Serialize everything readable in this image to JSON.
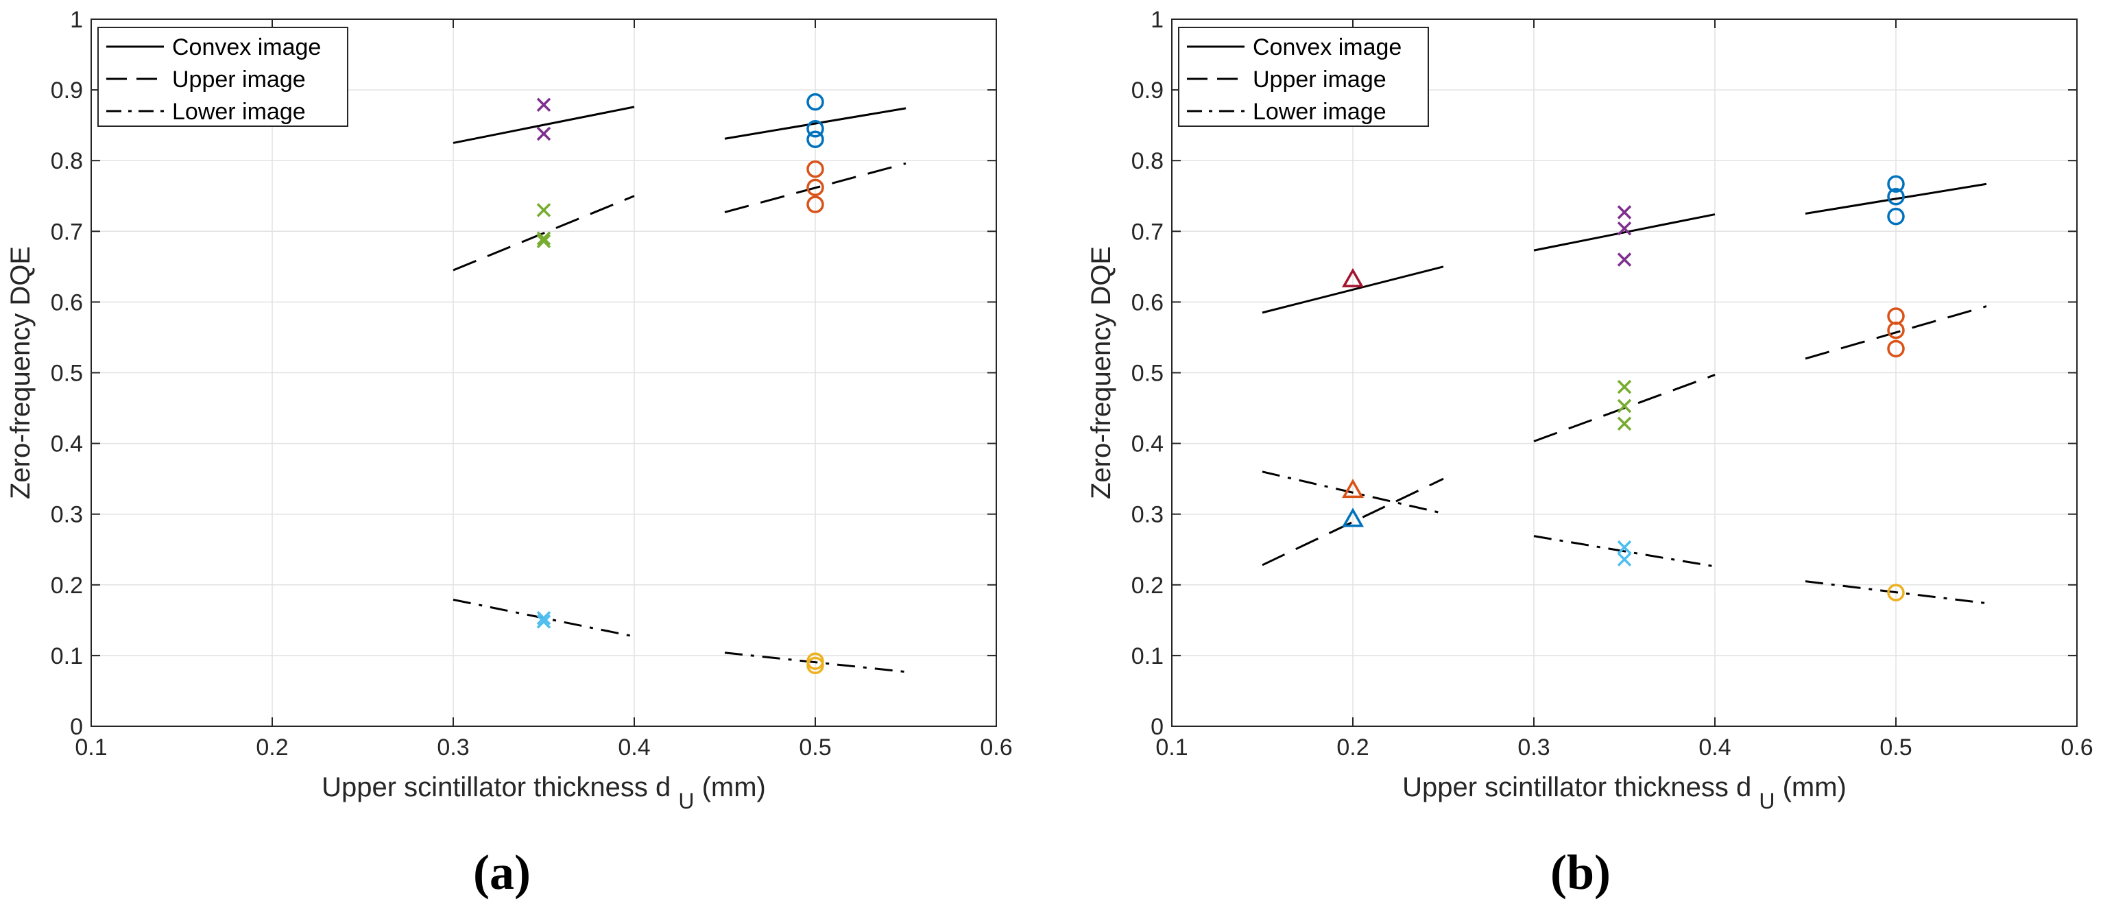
{
  "chart_data": [
    {
      "type": "line",
      "panel_label": "(a)",
      "xlabel": "Upper scintillator thickness d",
      "xlabel_subscript": "U",
      "xlabel_suffix": "(mm)",
      "ylabel": "Zero-frequency DQE",
      "xlim": [
        0.1,
        0.6
      ],
      "ylim": [
        0,
        1
      ],
      "xticks": [
        0.1,
        0.2,
        0.3,
        0.4,
        0.5,
        0.6
      ],
      "xtick_labels": [
        "0.1",
        "0.2",
        "0.3",
        "0.4",
        "0.5",
        "0.6"
      ],
      "yticks": [
        0,
        0.1,
        0.2,
        0.3,
        0.4,
        0.5,
        0.6,
        0.7,
        0.8,
        0.9,
        1
      ],
      "ytick_labels": [
        "0",
        "0.1",
        "0.2",
        "0.3",
        "0.4",
        "0.5",
        "0.6",
        "0.7",
        "0.8",
        "0.9",
        "1"
      ],
      "grid": true,
      "legend_position": "top-left",
      "legend": [
        {
          "label": "Convex image",
          "style": "solid"
        },
        {
          "label": "Upper image",
          "style": "dashed"
        },
        {
          "label": "Lower image",
          "style": "dashdot"
        }
      ],
      "series": [
        {
          "name": "Convex image",
          "style": "solid",
          "x": [
            0.3,
            0.4
          ],
          "y": [
            0.825,
            0.876
          ]
        },
        {
          "name": "Convex image",
          "style": "solid",
          "x": [
            0.45,
            0.55
          ],
          "y": [
            0.831,
            0.874
          ]
        },
        {
          "name": "Upper image",
          "style": "dashed",
          "x": [
            0.3,
            0.4
          ],
          "y": [
            0.645,
            0.75
          ]
        },
        {
          "name": "Upper image",
          "style": "dashed",
          "x": [
            0.45,
            0.55
          ],
          "y": [
            0.727,
            0.796
          ]
        },
        {
          "name": "Lower image",
          "style": "dashdot",
          "x": [
            0.3,
            0.4
          ],
          "y": [
            0.179,
            0.127
          ]
        },
        {
          "name": "Lower image",
          "style": "dashdot",
          "x": [
            0.45,
            0.55
          ],
          "y": [
            0.104,
            0.077
          ]
        }
      ],
      "markers": [
        {
          "shape": "x",
          "color": "#7E2F8E",
          "x": 0.35,
          "y": [
            0.879,
            0.838
          ]
        },
        {
          "shape": "x",
          "color": "#77AC30",
          "x": 0.35,
          "y": [
            0.73,
            0.69,
            0.686
          ]
        },
        {
          "shape": "x",
          "color": "#4DBEEE",
          "x": 0.35,
          "y": [
            0.153,
            0.148
          ]
        },
        {
          "shape": "o",
          "color": "#0072BD",
          "x": 0.5,
          "y": [
            0.883,
            0.845,
            0.83
          ]
        },
        {
          "shape": "o",
          "color": "#D95319",
          "x": 0.5,
          "y": [
            0.788,
            0.762,
            0.738
          ]
        },
        {
          "shape": "o",
          "color": "#EDB120",
          "x": 0.5,
          "y": [
            0.092,
            0.086
          ]
        }
      ]
    },
    {
      "type": "line",
      "panel_label": "(b)",
      "xlabel": "Upper scintillator thickness d",
      "xlabel_subscript": "U",
      "xlabel_suffix": "(mm)",
      "ylabel": "Zero-frequency DQE",
      "xlim": [
        0.1,
        0.6
      ],
      "ylim": [
        0,
        1
      ],
      "xticks": [
        0.1,
        0.2,
        0.3,
        0.4,
        0.5,
        0.6
      ],
      "xtick_labels": [
        "0.1",
        "0.2",
        "0.3",
        "0.4",
        "0.5",
        "0.6"
      ],
      "yticks": [
        0,
        0.1,
        0.2,
        0.3,
        0.4,
        0.5,
        0.6,
        0.7,
        0.8,
        0.9,
        1
      ],
      "ytick_labels": [
        "0",
        "0.1",
        "0.2",
        "0.3",
        "0.4",
        "0.5",
        "0.6",
        "0.7",
        "0.8",
        "0.9",
        "1"
      ],
      "grid": true,
      "legend_position": "top-left",
      "legend": [
        {
          "label": "Convex image",
          "style": "solid"
        },
        {
          "label": "Upper image",
          "style": "dashed"
        },
        {
          "label": "Lower image",
          "style": "dashdot"
        }
      ],
      "series": [
        {
          "name": "Convex image",
          "style": "solid",
          "x": [
            0.15,
            0.25
          ],
          "y": [
            0.585,
            0.65
          ]
        },
        {
          "name": "Convex image",
          "style": "solid",
          "x": [
            0.3,
            0.4
          ],
          "y": [
            0.673,
            0.724
          ]
        },
        {
          "name": "Convex image",
          "style": "solid",
          "x": [
            0.45,
            0.55
          ],
          "y": [
            0.725,
            0.767
          ]
        },
        {
          "name": "Upper image",
          "style": "dashed",
          "x": [
            0.15,
            0.25
          ],
          "y": [
            0.228,
            0.35
          ]
        },
        {
          "name": "Upper image",
          "style": "dashed",
          "x": [
            0.3,
            0.4
          ],
          "y": [
            0.403,
            0.497
          ]
        },
        {
          "name": "Upper image",
          "style": "dashed",
          "x": [
            0.45,
            0.55
          ],
          "y": [
            0.52,
            0.594
          ]
        },
        {
          "name": "Lower image",
          "style": "dashdot",
          "x": [
            0.15,
            0.25
          ],
          "y": [
            0.36,
            0.301
          ]
        },
        {
          "name": "Lower image",
          "style": "dashdot",
          "x": [
            0.3,
            0.4
          ],
          "y": [
            0.269,
            0.226
          ]
        },
        {
          "name": "Lower image",
          "style": "dashdot",
          "x": [
            0.45,
            0.55
          ],
          "y": [
            0.205,
            0.174
          ]
        }
      ],
      "markers": [
        {
          "shape": "^",
          "color": "#A2142F",
          "x": 0.2,
          "y": [
            0.632
          ]
        },
        {
          "shape": "^",
          "color": "#D95319",
          "x": 0.2,
          "y": [
            0.334
          ]
        },
        {
          "shape": "^",
          "color": "#0072BD",
          "x": 0.2,
          "y": [
            0.293
          ]
        },
        {
          "shape": "x",
          "color": "#7E2F8E",
          "x": 0.35,
          "y": [
            0.727,
            0.704,
            0.66
          ]
        },
        {
          "shape": "x",
          "color": "#77AC30",
          "x": 0.35,
          "y": [
            0.48,
            0.453,
            0.428
          ]
        },
        {
          "shape": "x",
          "color": "#4DBEEE",
          "x": 0.35,
          "y": [
            0.253,
            0.236
          ]
        },
        {
          "shape": "o",
          "color": "#0072BD",
          "x": 0.5,
          "y": [
            0.767,
            0.749,
            0.721
          ]
        },
        {
          "shape": "o",
          "color": "#D95319",
          "x": 0.5,
          "y": [
            0.58,
            0.56,
            0.534
          ]
        },
        {
          "shape": "o",
          "color": "#EDB120",
          "x": 0.5,
          "y": [
            0.189
          ]
        }
      ]
    }
  ]
}
